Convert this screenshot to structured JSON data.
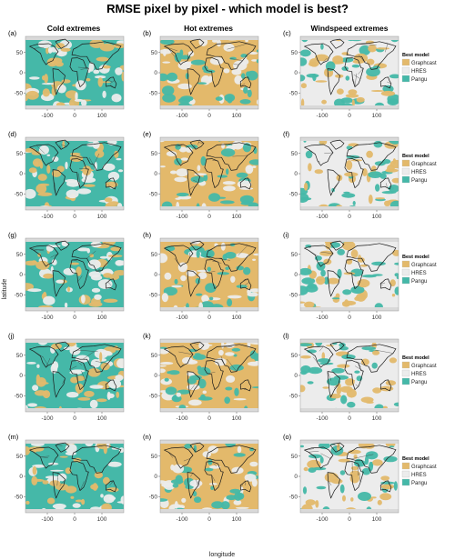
{
  "chart_data": {
    "type": "heatmap",
    "title": "RMSE pixel by pixel - which model is best?",
    "columns": [
      "Cold extremes",
      "Hot extremes",
      "Windspeed extremes"
    ],
    "panel_labels": [
      "(a)",
      "(b)",
      "(c)",
      "(d)",
      "(e)",
      "(f)",
      "(g)",
      "(h)",
      "(i)",
      "(j)",
      "(k)",
      "(l)",
      "(m)",
      "(n)",
      "(o)"
    ],
    "xlabel": "longitude",
    "ylabel": "latitude",
    "xlim": [
      -180,
      180
    ],
    "ylim": [
      -90,
      90
    ],
    "xticks": [
      -100,
      0,
      100
    ],
    "yticks": [
      -50,
      0,
      50
    ],
    "legend": {
      "title": "Best model",
      "entries": [
        {
          "name": "Graphcast",
          "color": "#e3b96b"
        },
        {
          "name": "HRES",
          "color": "#ececec"
        },
        {
          "name": "Pangu",
          "color": "#45b8a8"
        }
      ]
    },
    "dominant_model": [
      [
        "Pangu",
        "Graphcast",
        "HRES"
      ],
      [
        "Pangu",
        "Graphcast",
        "HRES"
      ],
      [
        "Pangu",
        "Graphcast",
        "HRES"
      ],
      [
        "Pangu",
        "Graphcast",
        "HRES"
      ],
      [
        "Pangu",
        "Graphcast",
        "HRES"
      ]
    ]
  }
}
